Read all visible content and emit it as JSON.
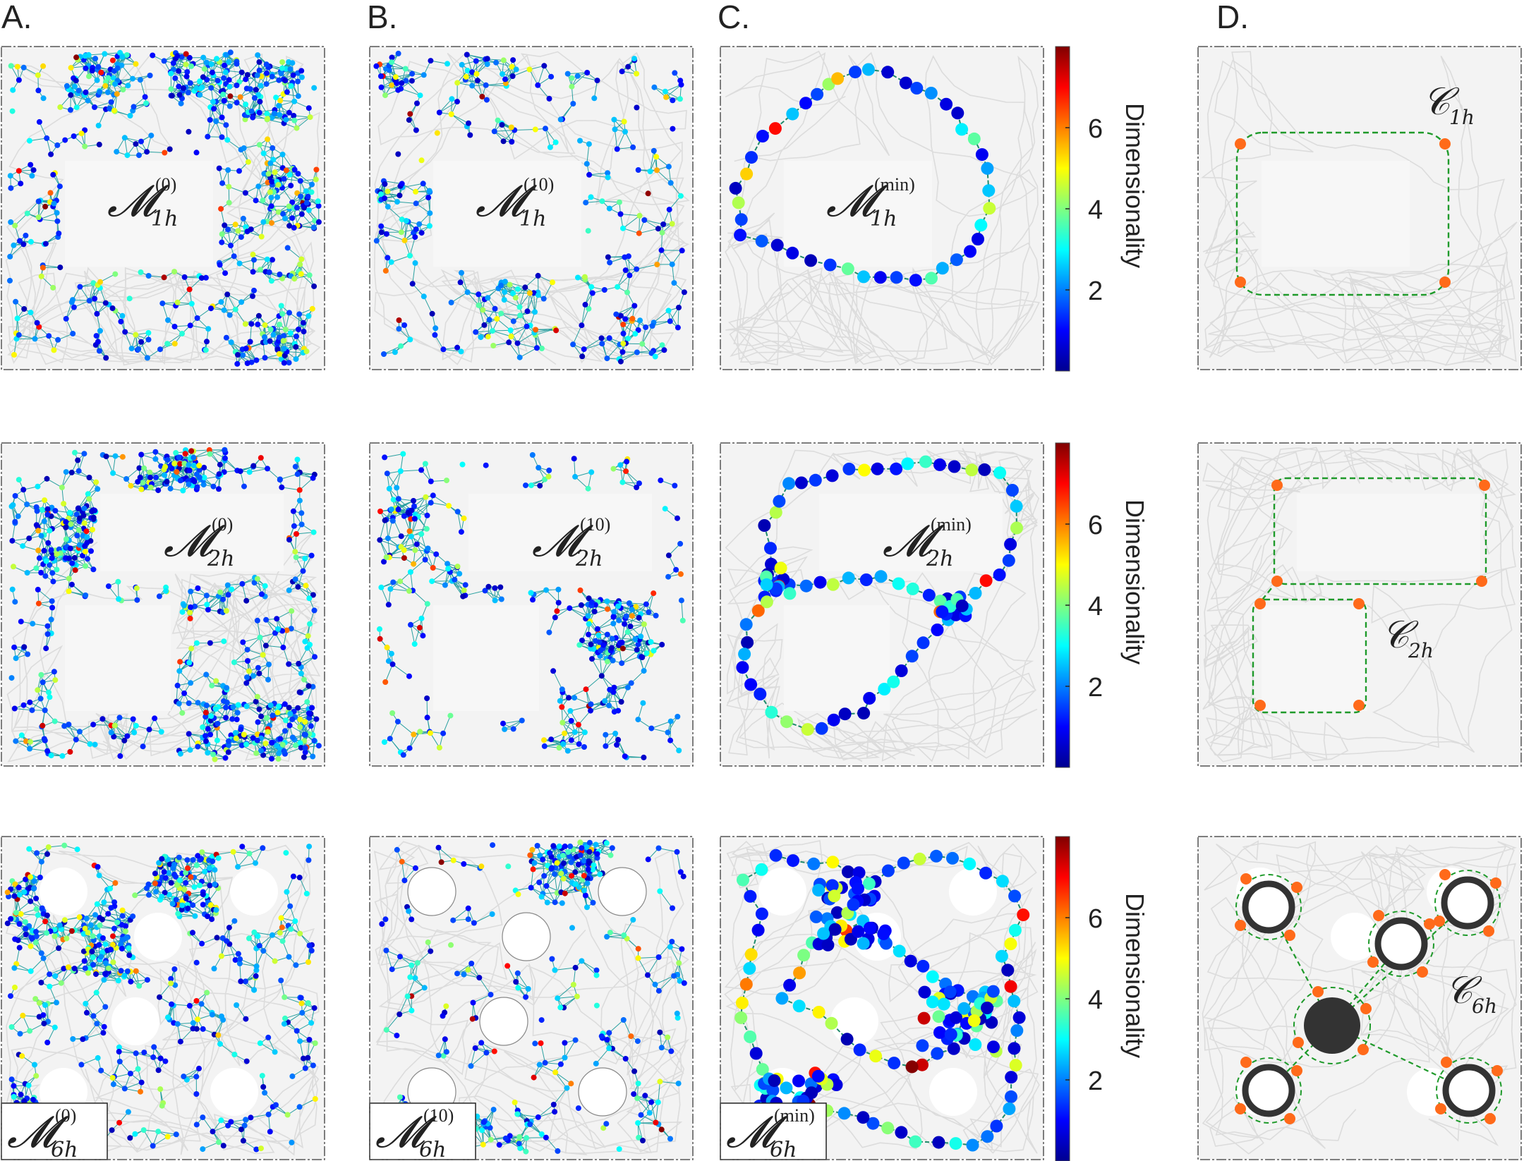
{
  "columns": [
    {
      "label": "A."
    },
    {
      "label": "B."
    },
    {
      "label": "C."
    },
    {
      "label": "D."
    }
  ],
  "rows": [
    {
      "env": "1h",
      "maps": {
        "A": {
          "symbol": "𝓜",
          "sub": "1h",
          "sup": "(0)"
        },
        "B": {
          "symbol": "𝓜",
          "sub": "1h",
          "sup": "(10)"
        },
        "C": {
          "symbol": "𝓜",
          "sub": "1h",
          "sup": "(min)"
        }
      },
      "complex": {
        "symbol": "𝒞",
        "sub": "1h"
      }
    },
    {
      "env": "2h",
      "maps": {
        "A": {
          "symbol": "𝓜",
          "sub": "2h",
          "sup": "(0)"
        },
        "B": {
          "symbol": "𝓜",
          "sub": "2h",
          "sup": "(10)"
        },
        "C": {
          "symbol": "𝓜",
          "sub": "2h",
          "sup": "(min)"
        }
      },
      "complex": {
        "symbol": "𝒞",
        "sub": "2h"
      }
    },
    {
      "env": "6h",
      "maps": {
        "A": {
          "symbol": "𝓜",
          "sub": "6h",
          "sup": "(0)"
        },
        "B": {
          "symbol": "𝓜",
          "sub": "6h",
          "sup": "(10)"
        },
        "C": {
          "symbol": "𝓜",
          "sub": "6h",
          "sup": "(min)"
        }
      },
      "complex": {
        "symbol": "𝒞",
        "sub": "6h"
      }
    }
  ],
  "colorbar": {
    "label": "Dimensionality",
    "ticks": [
      "2",
      "4",
      "6"
    ],
    "range": [
      0,
      8
    ]
  },
  "colors": {
    "trajectory": "#dcdcdc",
    "node_orange": "#ff6a1a",
    "dashed_green": "#1e9a2a",
    "obstacle_ring": "#333333",
    "hub_fill": "#333333"
  }
}
